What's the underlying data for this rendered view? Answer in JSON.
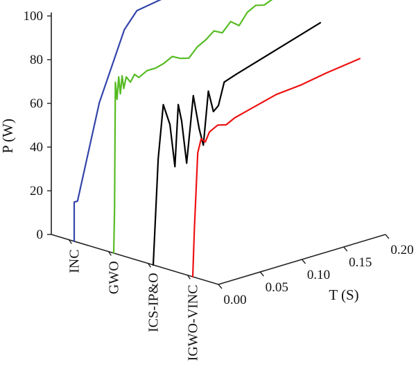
{
  "chart_data": {
    "type": "line",
    "projection": "3d-waterfall",
    "ylabel": "P (W)",
    "xlabel": "T (S)",
    "y_ticks": [
      "0",
      "20",
      "40",
      "60",
      "80",
      "100"
    ],
    "x_ticks": [
      "0.00",
      "0.05",
      "0.10",
      "0.15",
      "0.20"
    ],
    "ylim": [
      0,
      100
    ],
    "xlim": [
      0,
      0.2
    ],
    "categories": [
      "INC",
      "GWO",
      "ICS-IP&O",
      "IGWO-VINC"
    ],
    "series": [
      {
        "name": "INC",
        "color": "#3344aa",
        "points": [
          [
            0,
            0
          ],
          [
            0,
            18
          ],
          [
            0.004,
            18
          ],
          [
            0.03,
            60
          ],
          [
            0.06,
            90
          ],
          [
            0.075,
            97
          ],
          [
            0.2,
            105
          ]
        ]
      },
      {
        "name": "GWO",
        "color": "#55bb22",
        "points": [
          [
            0,
            0
          ],
          [
            0.001,
            20
          ],
          [
            0.002,
            78
          ],
          [
            0.004,
            70
          ],
          [
            0.006,
            80
          ],
          [
            0.008,
            72
          ],
          [
            0.01,
            80
          ],
          [
            0.012,
            74
          ],
          [
            0.015,
            79
          ],
          [
            0.02,
            76
          ],
          [
            0.025,
            79
          ],
          [
            0.03,
            77
          ],
          [
            0.04,
            79
          ],
          [
            0.05,
            79
          ],
          [
            0.06,
            80
          ],
          [
            0.07,
            82
          ],
          [
            0.08,
            80
          ],
          [
            0.09,
            79
          ],
          [
            0.1,
            83
          ],
          [
            0.11,
            85
          ],
          [
            0.12,
            88
          ],
          [
            0.13,
            86
          ],
          [
            0.14,
            90
          ],
          [
            0.15,
            87
          ],
          [
            0.16,
            92
          ],
          [
            0.17,
            94
          ],
          [
            0.18,
            93
          ],
          [
            0.2,
            96
          ]
        ]
      },
      {
        "name": "ICS-IP&O",
        "color": "#000000",
        "points": [
          [
            0,
            0
          ],
          [
            0.006,
            48
          ],
          [
            0.012,
            72
          ],
          [
            0.02,
            62
          ],
          [
            0.026,
            42
          ],
          [
            0.03,
            70
          ],
          [
            0.034,
            62
          ],
          [
            0.04,
            42
          ],
          [
            0.048,
            72
          ],
          [
            0.055,
            56
          ],
          [
            0.06,
            48
          ],
          [
            0.066,
            72
          ],
          [
            0.072,
            62
          ],
          [
            0.078,
            64
          ],
          [
            0.085,
            74
          ],
          [
            0.1,
            76
          ],
          [
            0.15,
            82
          ],
          [
            0.2,
            88
          ]
        ]
      },
      {
        "name": "IGWO-VINC",
        "color": "#ee1111",
        "points": [
          [
            0,
            0
          ],
          [
            0.002,
            22
          ],
          [
            0.006,
            56
          ],
          [
            0.01,
            62
          ],
          [
            0.015,
            60
          ],
          [
            0.02,
            64
          ],
          [
            0.03,
            66
          ],
          [
            0.04,
            65
          ],
          [
            0.05,
            67
          ],
          [
            0.06,
            68
          ],
          [
            0.08,
            70
          ],
          [
            0.1,
            72
          ],
          [
            0.13,
            73
          ],
          [
            0.16,
            75
          ],
          [
            0.2,
            77
          ]
        ]
      }
    ]
  }
}
